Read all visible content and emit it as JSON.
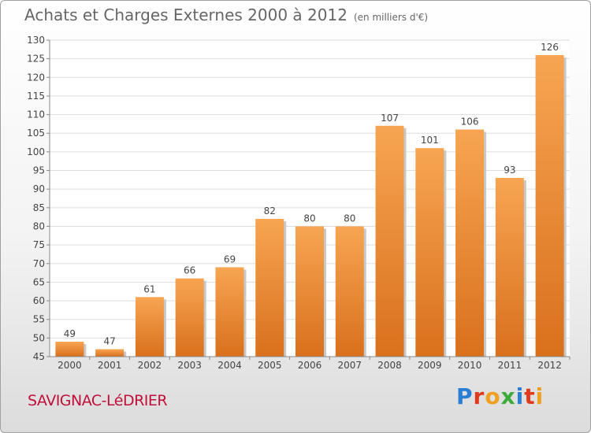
{
  "chart_data": {
    "type": "bar",
    "title": "Achats et Charges Externes 2000 à 2012",
    "subtitle": "(en milliers d'€)",
    "categories": [
      "2000",
      "2001",
      "2002",
      "2003",
      "2004",
      "2005",
      "2006",
      "2007",
      "2008",
      "2009",
      "2010",
      "2011",
      "2012"
    ],
    "values": [
      49,
      47,
      61,
      66,
      69,
      82,
      80,
      80,
      107,
      101,
      106,
      93,
      126
    ],
    "ylim": [
      45,
      130
    ],
    "yticks": [
      45,
      50,
      55,
      60,
      65,
      70,
      75,
      80,
      85,
      90,
      95,
      100,
      105,
      110,
      115,
      120,
      125,
      130
    ],
    "grid": true,
    "bar_color": "#f0892c"
  },
  "footer": {
    "location": "SAVIGNAC-LéDRIER",
    "logo_letters": [
      "P",
      "r",
      "o",
      "x",
      "i",
      "t",
      "i"
    ],
    "logo_colors": [
      "#2a7fd4",
      "#e03a1e",
      "#f0a020",
      "#3cab3c",
      "#2a7fd4",
      "#e03a1e",
      "#f0a020"
    ]
  }
}
